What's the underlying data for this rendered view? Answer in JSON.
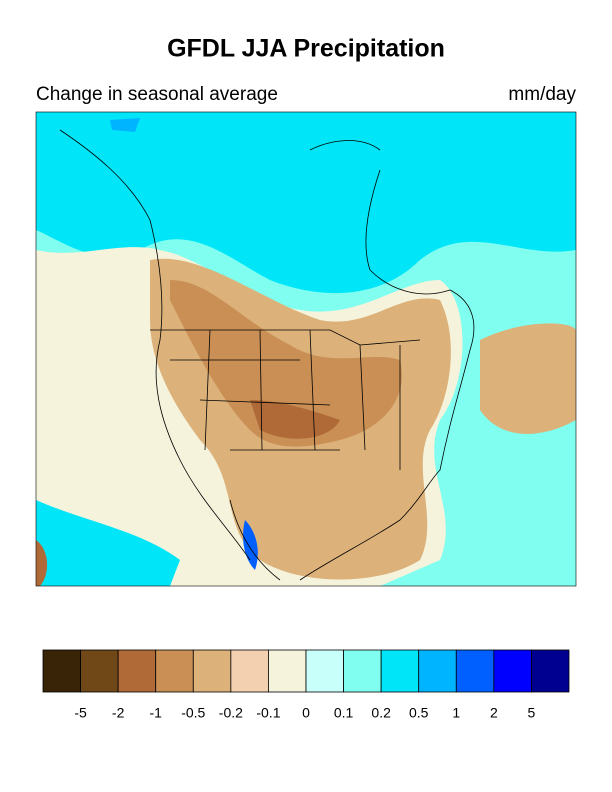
{
  "title": "GFDL JJA Precipitation",
  "subtitle": "Change in seasonal average",
  "units": "mm/day",
  "colorbar": {
    "levels": [
      -5,
      -2,
      -1,
      -0.5,
      -0.2,
      -0.1,
      0,
      0.1,
      0.2,
      0.5,
      1,
      2,
      5
    ],
    "colors": [
      "#3a2408",
      "#704818",
      "#b06a38",
      "#c98f55",
      "#dcb27a",
      "#f2d0b0",
      "#f6f3dc",
      "#c8fffa",
      "#80fff0",
      "#00e6f8",
      "#00b4ff",
      "#0060ff",
      "#0000ff",
      "#000090"
    ]
  }
}
